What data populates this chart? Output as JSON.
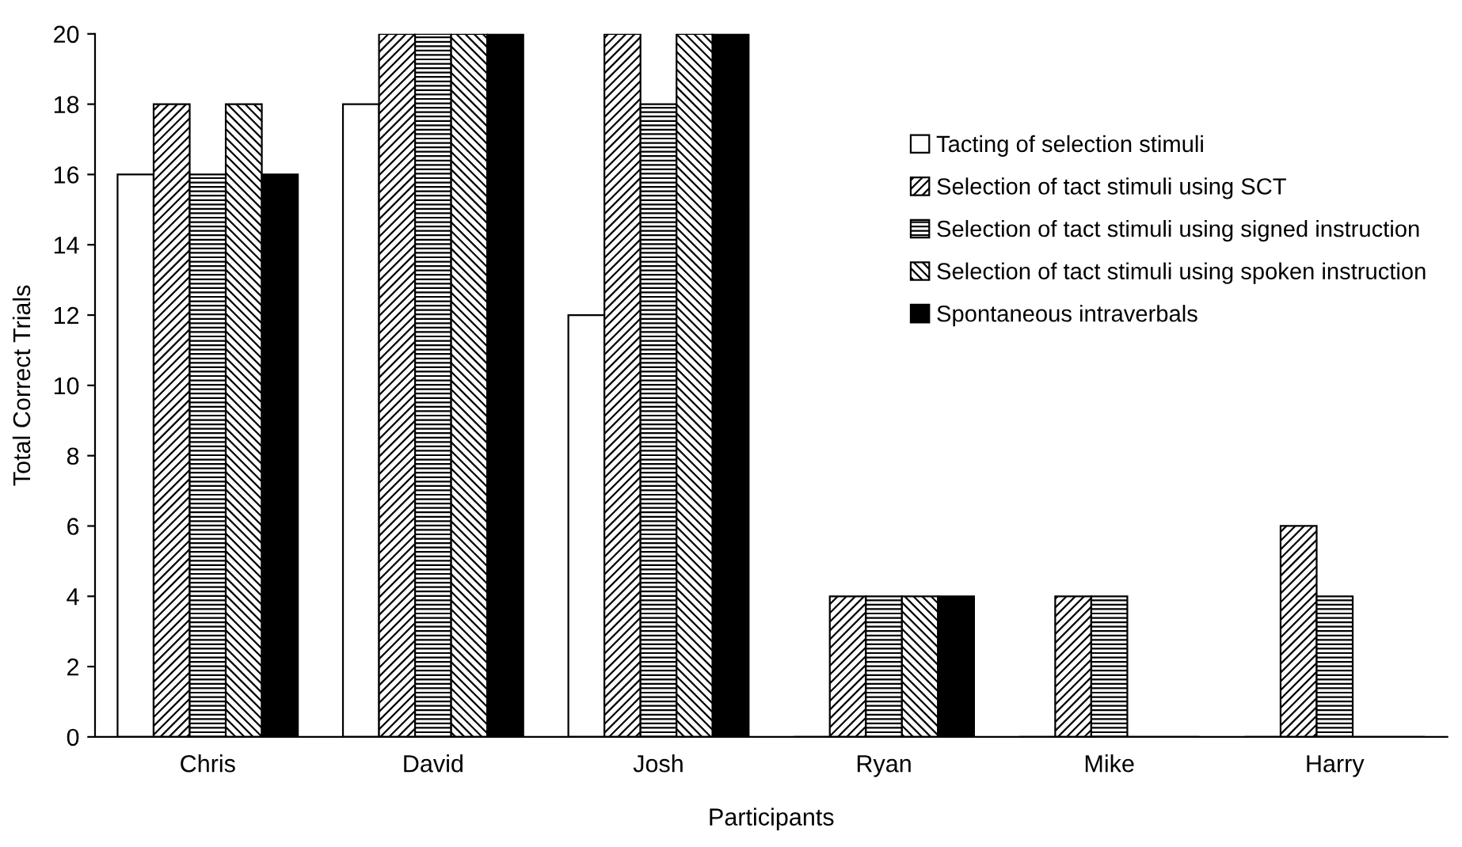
{
  "chart_data": {
    "type": "bar",
    "xlabel": "Participants",
    "ylabel": "Total Correct Trials",
    "categories": [
      "Chris",
      "David",
      "Josh",
      "Ryan",
      "Mike",
      "Harry"
    ],
    "series": [
      {
        "name": "Tacting of selection stimuli",
        "color": "#ffffff",
        "values": [
          16,
          18,
          12,
          0,
          0,
          0
        ]
      },
      {
        "name": "Selection of tact stimuli using SCT",
        "color": "#000000",
        "values": [
          18,
          20,
          20,
          4,
          4,
          6
        ]
      },
      {
        "name": "Selection of tact stimuli using signed instruction",
        "color": "#000000",
        "values": [
          16,
          20,
          18,
          4,
          4,
          4
        ]
      },
      {
        "name": "Selection of tact stimuli using spoken instruction",
        "color": "#000000",
        "values": [
          18,
          20,
          20,
          4,
          0,
          0
        ]
      },
      {
        "name": "Spontaneous intraverbals",
        "color": "#000000",
        "values": [
          16,
          20,
          20,
          4,
          0,
          0
        ]
      }
    ],
    "ylim": [
      0,
      20
    ],
    "yticks": [
      0,
      2,
      4,
      6,
      8,
      10,
      12,
      14,
      16,
      18,
      20
    ],
    "grid": false,
    "legend": "right"
  }
}
